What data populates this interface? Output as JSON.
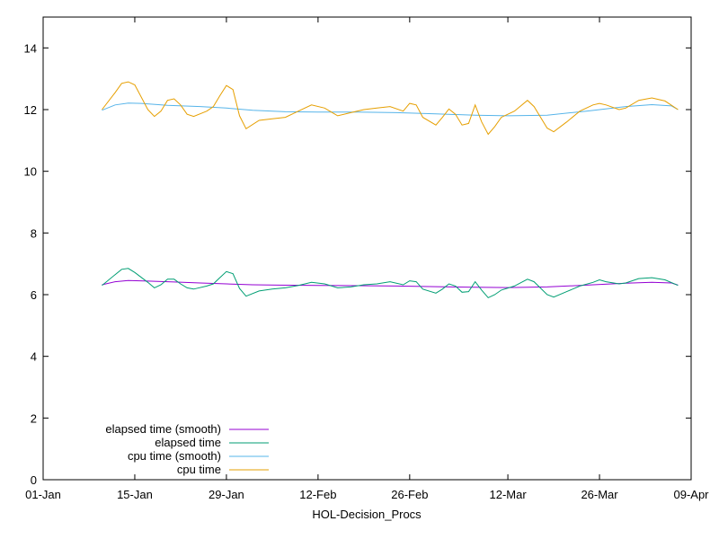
{
  "chart_data": {
    "type": "line",
    "xlabel": "HOL-Decision_Procs",
    "ylabel": "",
    "x_range": [
      "2024-01-01",
      "2024-04-09"
    ],
    "x_ticks": [
      {
        "date": "2024-01-01",
        "label": "01-Jan"
      },
      {
        "date": "2024-01-15",
        "label": "15-Jan"
      },
      {
        "date": "2024-01-29",
        "label": "29-Jan"
      },
      {
        "date": "2024-02-12",
        "label": "12-Feb"
      },
      {
        "date": "2024-02-26",
        "label": "26-Feb"
      },
      {
        "date": "2024-03-12",
        "label": "12-Mar"
      },
      {
        "date": "2024-03-26",
        "label": "26-Mar"
      },
      {
        "date": "2024-04-09",
        "label": "09-Apr"
      }
    ],
    "ylim": [
      0,
      15
    ],
    "y_ticks": [
      0,
      2,
      4,
      6,
      8,
      10,
      12,
      14
    ],
    "grid": false,
    "legend_position": "bottom-left",
    "series": [
      {
        "name": "elapsed time (smooth)",
        "color": "#9400d3",
        "points": [
          [
            "2024-01-10",
            6.32
          ],
          [
            "2024-01-12",
            6.42
          ],
          [
            "2024-01-14",
            6.46
          ],
          [
            "2024-01-17",
            6.44
          ],
          [
            "2024-01-21",
            6.41
          ],
          [
            "2024-01-25",
            6.38
          ],
          [
            "2024-01-29",
            6.35
          ],
          [
            "2024-02-02",
            6.32
          ],
          [
            "2024-02-06",
            6.31
          ],
          [
            "2024-02-12",
            6.3
          ],
          [
            "2024-02-18",
            6.29
          ],
          [
            "2024-02-24",
            6.28
          ],
          [
            "2024-03-01",
            6.26
          ],
          [
            "2024-03-07",
            6.24
          ],
          [
            "2024-03-12",
            6.23
          ],
          [
            "2024-03-18",
            6.25
          ],
          [
            "2024-03-24",
            6.31
          ],
          [
            "2024-03-30",
            6.37
          ],
          [
            "2024-04-03",
            6.4
          ],
          [
            "2024-04-06",
            6.38
          ],
          [
            "2024-04-07",
            6.31
          ]
        ]
      },
      {
        "name": "elapsed time",
        "color": "#009e73",
        "points": [
          [
            "2024-01-10",
            6.3
          ],
          [
            "2024-01-12",
            6.65
          ],
          [
            "2024-01-13",
            6.82
          ],
          [
            "2024-01-14",
            6.85
          ],
          [
            "2024-01-15",
            6.72
          ],
          [
            "2024-01-17",
            6.4
          ],
          [
            "2024-01-18",
            6.22
          ],
          [
            "2024-01-19",
            6.32
          ],
          [
            "2024-01-20",
            6.5
          ],
          [
            "2024-01-21",
            6.5
          ],
          [
            "2024-01-22",
            6.35
          ],
          [
            "2024-01-23",
            6.22
          ],
          [
            "2024-01-24",
            6.18
          ],
          [
            "2024-01-26",
            6.28
          ],
          [
            "2024-01-27",
            6.35
          ],
          [
            "2024-01-28",
            6.55
          ],
          [
            "2024-01-29",
            6.75
          ],
          [
            "2024-01-30",
            6.68
          ],
          [
            "2024-01-31",
            6.2
          ],
          [
            "2024-02-01",
            5.95
          ],
          [
            "2024-02-03",
            6.12
          ],
          [
            "2024-02-05",
            6.18
          ],
          [
            "2024-02-07",
            6.22
          ],
          [
            "2024-02-09",
            6.3
          ],
          [
            "2024-02-11",
            6.4
          ],
          [
            "2024-02-13",
            6.35
          ],
          [
            "2024-02-15",
            6.22
          ],
          [
            "2024-02-17",
            6.25
          ],
          [
            "2024-02-19",
            6.32
          ],
          [
            "2024-02-21",
            6.35
          ],
          [
            "2024-02-23",
            6.42
          ],
          [
            "2024-02-25",
            6.32
          ],
          [
            "2024-02-26",
            6.45
          ],
          [
            "2024-02-27",
            6.42
          ],
          [
            "2024-02-28",
            6.18
          ],
          [
            "2024-03-01",
            6.05
          ],
          [
            "2024-03-02",
            6.18
          ],
          [
            "2024-03-03",
            6.35
          ],
          [
            "2024-03-04",
            6.28
          ],
          [
            "2024-03-05",
            6.08
          ],
          [
            "2024-03-06",
            6.1
          ],
          [
            "2024-03-07",
            6.42
          ],
          [
            "2024-03-08",
            6.15
          ],
          [
            "2024-03-09",
            5.9
          ],
          [
            "2024-03-10",
            6.0
          ],
          [
            "2024-03-11",
            6.15
          ],
          [
            "2024-03-13",
            6.28
          ],
          [
            "2024-03-15",
            6.5
          ],
          [
            "2024-03-16",
            6.42
          ],
          [
            "2024-03-18",
            6.0
          ],
          [
            "2024-03-19",
            5.92
          ],
          [
            "2024-03-21",
            6.1
          ],
          [
            "2024-03-23",
            6.28
          ],
          [
            "2024-03-25",
            6.4
          ],
          [
            "2024-03-26",
            6.48
          ],
          [
            "2024-03-27",
            6.42
          ],
          [
            "2024-03-29",
            6.35
          ],
          [
            "2024-03-30",
            6.38
          ],
          [
            "2024-04-01",
            6.52
          ],
          [
            "2024-04-03",
            6.55
          ],
          [
            "2024-04-05",
            6.48
          ],
          [
            "2024-04-07",
            6.3
          ]
        ]
      },
      {
        "name": "cpu time (smooth)",
        "color": "#56b4e9",
        "points": [
          [
            "2024-01-10",
            11.98
          ],
          [
            "2024-01-12",
            12.15
          ],
          [
            "2024-01-14",
            12.21
          ],
          [
            "2024-01-16",
            12.2
          ],
          [
            "2024-01-20",
            12.14
          ],
          [
            "2024-01-25",
            12.1
          ],
          [
            "2024-01-29",
            12.05
          ],
          [
            "2024-02-02",
            11.98
          ],
          [
            "2024-02-07",
            11.93
          ],
          [
            "2024-02-12",
            11.92
          ],
          [
            "2024-02-18",
            11.92
          ],
          [
            "2024-02-24",
            11.9
          ],
          [
            "2024-03-01",
            11.86
          ],
          [
            "2024-03-07",
            11.82
          ],
          [
            "2024-03-12",
            11.8
          ],
          [
            "2024-03-18",
            11.82
          ],
          [
            "2024-03-24",
            11.95
          ],
          [
            "2024-03-30",
            12.1
          ],
          [
            "2024-04-03",
            12.16
          ],
          [
            "2024-04-06",
            12.12
          ],
          [
            "2024-04-07",
            12.0
          ]
        ]
      },
      {
        "name": "cpu time",
        "color": "#e69f00",
        "points": [
          [
            "2024-01-10",
            12.0
          ],
          [
            "2024-01-12",
            12.55
          ],
          [
            "2024-01-13",
            12.85
          ],
          [
            "2024-01-14",
            12.9
          ],
          [
            "2024-01-15",
            12.8
          ],
          [
            "2024-01-17",
            12.0
          ],
          [
            "2024-01-18",
            11.78
          ],
          [
            "2024-01-19",
            11.95
          ],
          [
            "2024-01-20",
            12.3
          ],
          [
            "2024-01-21",
            12.35
          ],
          [
            "2024-01-22",
            12.15
          ],
          [
            "2024-01-23",
            11.85
          ],
          [
            "2024-01-24",
            11.78
          ],
          [
            "2024-01-26",
            11.95
          ],
          [
            "2024-01-27",
            12.1
          ],
          [
            "2024-01-28",
            12.45
          ],
          [
            "2024-01-29",
            12.78
          ],
          [
            "2024-01-30",
            12.65
          ],
          [
            "2024-01-31",
            11.8
          ],
          [
            "2024-02-01",
            11.38
          ],
          [
            "2024-02-03",
            11.65
          ],
          [
            "2024-02-05",
            11.7
          ],
          [
            "2024-02-07",
            11.75
          ],
          [
            "2024-02-09",
            11.95
          ],
          [
            "2024-02-11",
            12.15
          ],
          [
            "2024-02-13",
            12.05
          ],
          [
            "2024-02-15",
            11.8
          ],
          [
            "2024-02-17",
            11.9
          ],
          [
            "2024-02-19",
            12.0
          ],
          [
            "2024-02-21",
            12.05
          ],
          [
            "2024-02-23",
            12.1
          ],
          [
            "2024-02-25",
            11.95
          ],
          [
            "2024-02-26",
            12.2
          ],
          [
            "2024-02-27",
            12.15
          ],
          [
            "2024-02-28",
            11.75
          ],
          [
            "2024-03-01",
            11.5
          ],
          [
            "2024-03-02",
            11.75
          ],
          [
            "2024-03-03",
            12.02
          ],
          [
            "2024-03-04",
            11.85
          ],
          [
            "2024-03-05",
            11.5
          ],
          [
            "2024-03-06",
            11.55
          ],
          [
            "2024-03-07",
            12.15
          ],
          [
            "2024-03-08",
            11.6
          ],
          [
            "2024-03-09",
            11.2
          ],
          [
            "2024-03-10",
            11.45
          ],
          [
            "2024-03-11",
            11.75
          ],
          [
            "2024-03-13",
            11.95
          ],
          [
            "2024-03-15",
            12.3
          ],
          [
            "2024-03-16",
            12.1
          ],
          [
            "2024-03-18",
            11.4
          ],
          [
            "2024-03-19",
            11.28
          ],
          [
            "2024-03-21",
            11.6
          ],
          [
            "2024-03-23",
            11.95
          ],
          [
            "2024-03-25",
            12.15
          ],
          [
            "2024-03-26",
            12.2
          ],
          [
            "2024-03-27",
            12.15
          ],
          [
            "2024-03-29",
            12.0
          ],
          [
            "2024-03-30",
            12.05
          ],
          [
            "2024-04-01",
            12.3
          ],
          [
            "2024-04-03",
            12.38
          ],
          [
            "2024-04-05",
            12.28
          ],
          [
            "2024-04-07",
            12.0
          ]
        ]
      }
    ],
    "legend_order": [
      0,
      1,
      2,
      3
    ]
  }
}
